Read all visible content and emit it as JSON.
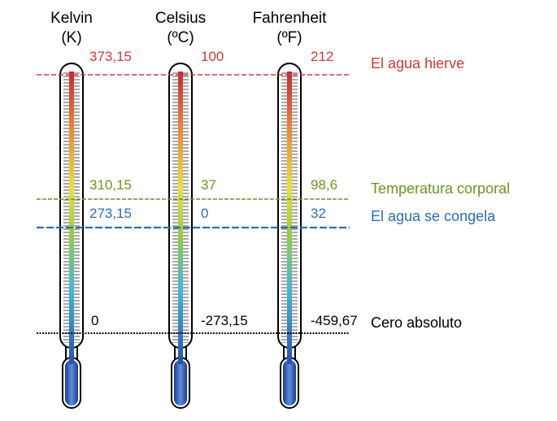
{
  "scales": [
    {
      "name": "Kelvin",
      "unit": "(K)"
    },
    {
      "name": "Celsius",
      "unit": "(ºC)"
    },
    {
      "name": "Fahrenheit",
      "unit": "(ºF)"
    }
  ],
  "references": [
    {
      "label": "El agua hierve",
      "values": [
        "373,15",
        "100",
        "212"
      ]
    },
    {
      "label": "Temperatura corporal",
      "values": [
        "310,15",
        "37",
        "98,6"
      ]
    },
    {
      "label": "El agua se congela",
      "values": [
        "273,15",
        "0",
        "32"
      ]
    },
    {
      "label": "Cero absoluto",
      "values": [
        "0",
        "-273,15",
        "-459,67"
      ]
    }
  ]
}
